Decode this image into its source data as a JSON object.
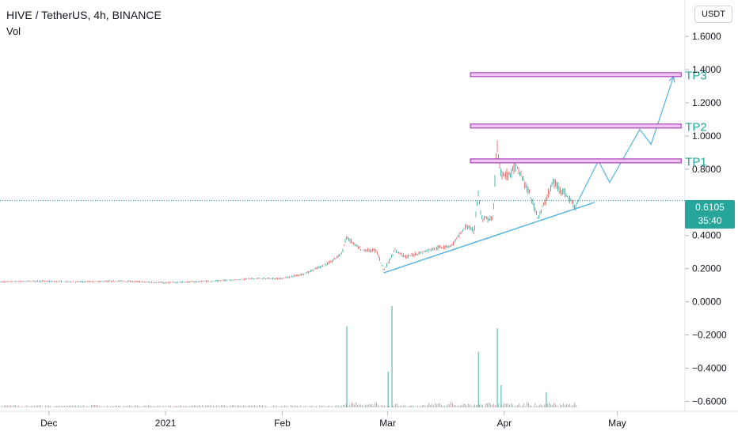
{
  "header": {
    "title": "HIVE / TetherUS, 4h, BINANCE",
    "volume_label": "Vol"
  },
  "currency_button": "USDT",
  "last_price": {
    "value": "0.6105",
    "countdown": "35:40"
  },
  "colors": {
    "up": "#26a69a",
    "down": "#ef5350",
    "trendline": "#56b4e0",
    "target_fill": "#f1c6f3",
    "target_stroke": "#9c27b0",
    "target_label": "#26a69a"
  },
  "targets": [
    {
      "label": "TP1",
      "price": 0.85
    },
    {
      "label": "TP2",
      "price": 1.06
    },
    {
      "label": "TP3",
      "price": 1.37
    }
  ],
  "chart_data": {
    "type": "candlestick",
    "title": "HIVE / TetherUS, 4h, BINANCE",
    "y_ticks": [
      "1.6000",
      "1.4000",
      "1.2000",
      "1.0000",
      "0.8000",
      "0.4000",
      "0.2000",
      "0.0000",
      "−0.2000",
      "−0.4000",
      "−0.6000"
    ],
    "y_tick_values": [
      1.6,
      1.4,
      1.2,
      1.0,
      0.8,
      0.4,
      0.2,
      0.0,
      -0.2,
      -0.4,
      -0.6
    ],
    "x_ticks": [
      "Dec",
      "2021",
      "Feb",
      "Mar",
      "Apr",
      "May"
    ],
    "x_tick_dates": [
      "2020-12-01",
      "2021-01-01",
      "2021-02-01",
      "2021-03-01",
      "2021-04-01",
      "2021-05-01"
    ],
    "ylim": [
      -0.66,
      1.82
    ],
    "xlim": [
      "2020-11-18",
      "2021-05-19"
    ],
    "grid": false,
    "price_path": [
      {
        "date": "2020-11-18",
        "price": 0.12
      },
      {
        "date": "2020-11-28",
        "price": 0.125
      },
      {
        "date": "2020-12-08",
        "price": 0.12
      },
      {
        "date": "2020-12-20",
        "price": 0.125
      },
      {
        "date": "2021-01-01",
        "price": 0.115
      },
      {
        "date": "2021-01-14",
        "price": 0.125
      },
      {
        "date": "2021-01-24",
        "price": 0.14
      },
      {
        "date": "2021-02-01",
        "price": 0.14
      },
      {
        "date": "2021-02-07",
        "price": 0.17
      },
      {
        "date": "2021-02-14",
        "price": 0.24
      },
      {
        "date": "2021-02-17",
        "price": 0.3
      },
      {
        "date": "2021-02-18",
        "price": 0.39
      },
      {
        "date": "2021-02-22",
        "price": 0.31
      },
      {
        "date": "2021-02-26",
        "price": 0.31
      },
      {
        "date": "2021-02-28",
        "price": 0.19
      },
      {
        "date": "2021-03-01",
        "price": 0.23
      },
      {
        "date": "2021-03-03",
        "price": 0.31
      },
      {
        "date": "2021-03-06",
        "price": 0.27
      },
      {
        "date": "2021-03-13",
        "price": 0.32
      },
      {
        "date": "2021-03-18",
        "price": 0.34
      },
      {
        "date": "2021-03-22",
        "price": 0.46
      },
      {
        "date": "2021-03-24",
        "price": 0.42
      },
      {
        "date": "2021-03-25",
        "price": 0.66
      },
      {
        "date": "2021-03-26",
        "price": 0.5
      },
      {
        "date": "2021-03-29",
        "price": 0.5
      },
      {
        "date": "2021-03-30",
        "price": 0.95
      },
      {
        "date": "2021-03-31",
        "price": 0.78
      },
      {
        "date": "2021-04-02",
        "price": 0.76
      },
      {
        "date": "2021-04-04",
        "price": 0.82
      },
      {
        "date": "2021-04-06",
        "price": 0.74
      },
      {
        "date": "2021-04-08",
        "price": 0.63
      },
      {
        "date": "2021-04-10",
        "price": 0.51
      },
      {
        "date": "2021-04-12",
        "price": 0.61
      },
      {
        "date": "2021-04-14",
        "price": 0.72
      },
      {
        "date": "2021-04-16",
        "price": 0.68
      },
      {
        "date": "2021-04-18",
        "price": 0.63
      },
      {
        "date": "2021-04-20",
        "price": 0.57
      }
    ],
    "volume_spikes": [
      {
        "date": "2021-02-18",
        "relative": 0.8
      },
      {
        "date": "2021-03-02",
        "relative": 1.0
      },
      {
        "date": "2021-03-01",
        "relative": 0.35
      },
      {
        "date": "2021-03-25",
        "relative": 0.55
      },
      {
        "date": "2021-03-30",
        "relative": 0.78
      },
      {
        "date": "2021-03-31",
        "relative": 0.22
      },
      {
        "date": "2021-04-12",
        "relative": 0.15
      }
    ],
    "trendline": [
      {
        "date": "2021-02-28",
        "price": 0.175
      },
      {
        "date": "2021-04-25",
        "price": 0.6
      }
    ],
    "projection_path": [
      {
        "date": "2021-04-20",
        "price": 0.58
      },
      {
        "date": "2021-04-26",
        "price": 0.85
      },
      {
        "date": "2021-04-29",
        "price": 0.72
      },
      {
        "date": "2021-05-07",
        "price": 1.04
      },
      {
        "date": "2021-05-10",
        "price": 0.95
      },
      {
        "date": "2021-05-16",
        "price": 1.36
      }
    ],
    "target_band": {
      "start": "2021-03-23",
      "end": "2021-05-18"
    }
  }
}
